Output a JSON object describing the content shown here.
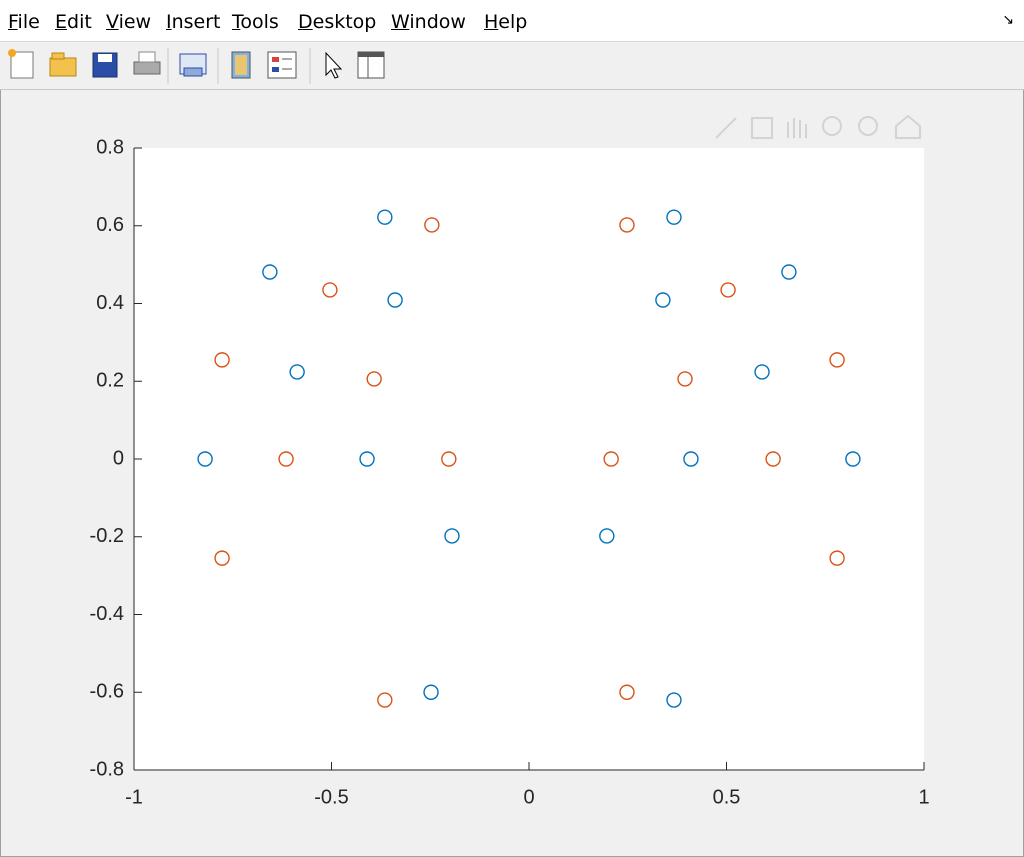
{
  "menu": {
    "items": [
      "File",
      "Edit",
      "View",
      "Insert",
      "Tools",
      "Desktop",
      "Window",
      "Help"
    ]
  },
  "chart_data": {
    "type": "scatter",
    "series": [
      {
        "color": "#0072bd",
        "x": [
          -0.82,
          -0.656,
          -0.365,
          -0.339,
          -0.587,
          -0.41,
          -0.195,
          -0.248,
          0.367,
          0.339,
          0.658,
          0.59,
          0.41,
          0.82,
          0.197,
          0.367
        ],
        "values": [
          0,
          0.481,
          0.622,
          0.409,
          0.224,
          0,
          -0.198,
          -0.6,
          0.622,
          0.409,
          0.481,
          0.224,
          0,
          0,
          -0.198,
          -0.62
        ]
      },
      {
        "color": "#d95319",
        "x": [
          -0.777,
          -0.504,
          -0.246,
          -0.392,
          -0.615,
          -0.203,
          -0.777,
          -0.365,
          0.248,
          0.504,
          0.78,
          0.395,
          0.208,
          0.618,
          0.78,
          0.248
        ],
        "values": [
          0.255,
          0.435,
          0.602,
          0.206,
          0,
          0,
          -0.255,
          -0.62,
          0.602,
          0.435,
          0.255,
          0.206,
          0,
          0,
          -0.255,
          -0.6
        ]
      }
    ],
    "xlim": [
      -1,
      1
    ],
    "xticks": [
      -1,
      -0.5,
      0,
      0.5,
      1
    ],
    "ylim": [
      -0.8,
      0.8
    ],
    "yticks": [
      -0.8,
      -0.6,
      -0.4,
      -0.2,
      0,
      0.2,
      0.4,
      0.6,
      0.8
    ],
    "grid": false
  }
}
